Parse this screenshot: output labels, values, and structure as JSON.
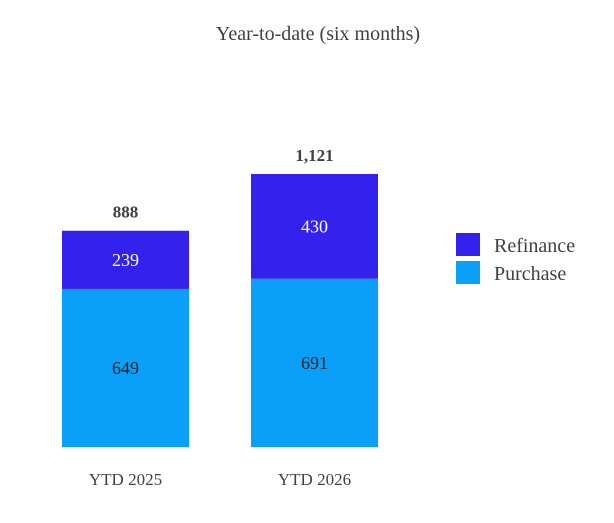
{
  "chart_data": {
    "type": "bar",
    "stacked": true,
    "title": "Year-to-date (six months)",
    "categories": [
      "YTD 2025",
      "YTD 2026"
    ],
    "series": [
      {
        "name": "Purchase",
        "values": [
          649,
          691
        ],
        "color": "#0aa0fa",
        "label_color": "#1a1a1a"
      },
      {
        "name": "Refinance",
        "values": [
          239,
          430
        ],
        "color": "#3322ee",
        "label_color": "#ffffff"
      }
    ],
    "totals": [
      "888",
      "1,121"
    ],
    "segment_labels": [
      [
        "649",
        "239"
      ],
      [
        "691",
        "430"
      ]
    ],
    "legend_order": [
      "Refinance",
      "Purchase"
    ],
    "legend_position": "right",
    "ylim": [
      0,
      1121
    ],
    "grid": false,
    "xlabel": "",
    "ylabel": ""
  }
}
